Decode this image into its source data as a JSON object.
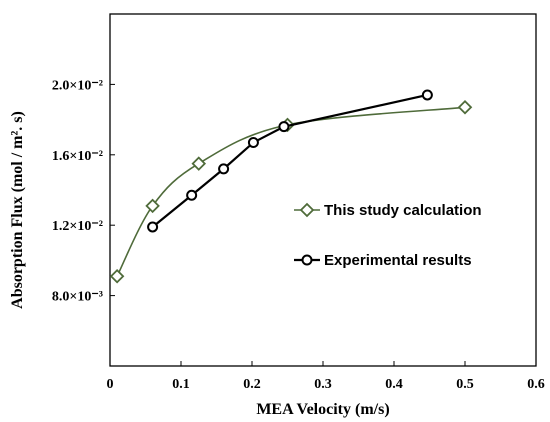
{
  "chart_data": {
    "type": "line",
    "xlabel": "MEA Velocity (m/s)",
    "ylabel": "Absorption Flux (mol / m². s)",
    "xlim": [
      0,
      0.6
    ],
    "ylim": [
      0.004,
      0.024
    ],
    "xticks": [
      "0",
      "0.1",
      "0.2",
      "0.3",
      "0.4",
      "0.5",
      "0.6"
    ],
    "yticks": [
      {
        "value": 0.008,
        "label": "8.0×10⁻³"
      },
      {
        "value": 0.012,
        "label": "1.2×10⁻²"
      },
      {
        "value": 0.016,
        "label": "1.6×10⁻²"
      },
      {
        "value": 0.02,
        "label": "2.0×10⁻²"
      }
    ],
    "legend_position": "center-right",
    "grid": false,
    "series": [
      {
        "name": "This study calculation",
        "marker": "diamond",
        "smooth": true,
        "color": "#4f6b3a",
        "x": [
          0.01,
          0.06,
          0.125,
          0.25,
          0.5
        ],
        "y": [
          0.0091,
          0.0131,
          0.0155,
          0.0177,
          0.0187
        ]
      },
      {
        "name": "Experimental results",
        "marker": "circle",
        "smooth": false,
        "color": "#000000",
        "x": [
          0.06,
          0.115,
          0.16,
          0.202,
          0.245,
          0.447
        ],
        "y": [
          0.0119,
          0.0137,
          0.0152,
          0.0167,
          0.0176,
          0.0194
        ]
      }
    ]
  }
}
